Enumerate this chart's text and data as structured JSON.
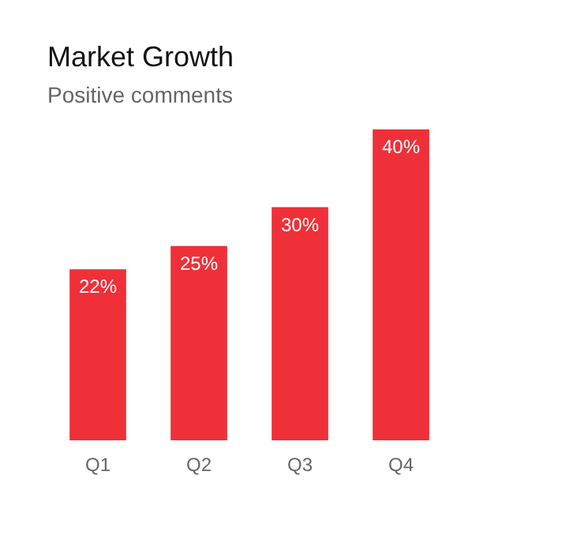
{
  "chart_data": {
    "type": "bar",
    "title": "Market Growth",
    "subtitle": "Positive comments",
    "categories": [
      "Q1",
      "Q2",
      "Q3",
      "Q4"
    ],
    "series": [
      {
        "color": "#ef3038",
        "values": [
          22,
          25,
          30,
          40
        ],
        "value_labels": [
          "22%",
          "25%",
          "30%",
          "40%"
        ]
      }
    ],
    "ylim": [
      0,
      40
    ],
    "tick_labels": "x",
    "grid": false
  }
}
